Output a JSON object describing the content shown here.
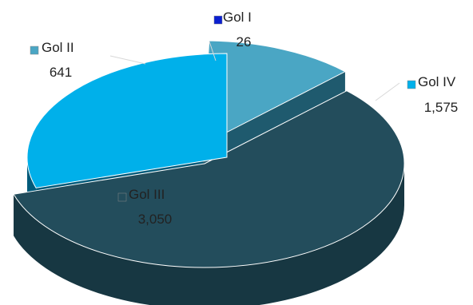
{
  "chart_data": {
    "type": "pie",
    "style": "3d-exploded",
    "legend_placement": "labels-on-slices",
    "title": "",
    "slices": [
      {
        "name": "Gol I",
        "value": 26,
        "value_label": "26",
        "color": "#0a1fd0",
        "side_color": "#050f70"
      },
      {
        "name": "Gol II",
        "value": 641,
        "value_label": "641",
        "color": "#4aa6c4",
        "side_color": "#1f5a6e"
      },
      {
        "name": "Gol III",
        "value": 3050,
        "value_label": "3,050",
        "color": "#234d5c",
        "side_color": "#173742"
      },
      {
        "name": "Gol IV",
        "value": 1575,
        "value_label": "1,575",
        "color": "#00b0ea",
        "side_color": "#005a7a"
      }
    ]
  }
}
